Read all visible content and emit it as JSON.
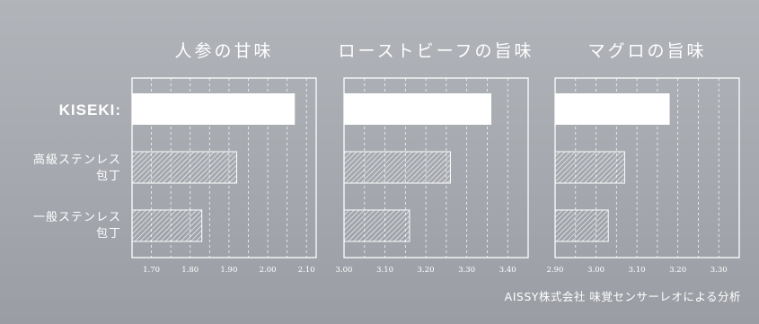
{
  "colors": {
    "background": "#a9acb2",
    "bar_fill": "#ffffff",
    "frame": "#ffffff"
  },
  "row_labels": [
    {
      "line1": "KISEKI:",
      "line2": ""
    },
    {
      "line1": "高級ステンレス",
      "line2": "包丁"
    },
    {
      "line1": "一般ステンレス",
      "line2": "包丁"
    }
  ],
  "credit": "AISSY株式会社 味覚センサーレオによる分析",
  "chart_data": [
    {
      "type": "bar",
      "orientation": "horizontal",
      "title": "人参の甘味",
      "categories": [
        "KISEKI:",
        "高級ステンレス包丁",
        "一般ステンレス包丁"
      ],
      "values": [
        2.07,
        1.92,
        1.83
      ],
      "xlim": [
        1.65,
        2.125
      ],
      "ticks": [
        1.7,
        1.8,
        1.9,
        2.0,
        2.1
      ],
      "tick_labels": [
        "1.70",
        "1.80",
        "1.90",
        "2.00",
        "2.10"
      ],
      "grid": true,
      "bar_styles": [
        "solid",
        "hatched",
        "hatched"
      ]
    },
    {
      "type": "bar",
      "orientation": "horizontal",
      "title": "ローストビーフの旨味",
      "categories": [
        "KISEKI:",
        "高級ステンレス包丁",
        "一般ステンレス包丁"
      ],
      "values": [
        3.36,
        3.26,
        3.16
      ],
      "xlim": [
        3.0,
        3.45
      ],
      "ticks": [
        3.0,
        3.1,
        3.2,
        3.3,
        3.4
      ],
      "tick_labels": [
        "3.00",
        "3.10",
        "3.20",
        "3.30",
        "3.40"
      ],
      "grid": true,
      "bar_styles": [
        "solid",
        "hatched",
        "hatched"
      ]
    },
    {
      "type": "bar",
      "orientation": "horizontal",
      "title": "マグロの旨味",
      "categories": [
        "KISEKI:",
        "高級ステンレス包丁",
        "一般ステンレス包丁"
      ],
      "values": [
        3.18,
        3.07,
        3.03
      ],
      "xlim": [
        2.9,
        3.35
      ],
      "ticks": [
        2.9,
        3.0,
        3.1,
        3.2,
        3.3
      ],
      "tick_labels": [
        "2.90",
        "3.00",
        "3.10",
        "3.20",
        "3.30"
      ],
      "grid": true,
      "bar_styles": [
        "solid",
        "hatched",
        "hatched"
      ]
    }
  ]
}
